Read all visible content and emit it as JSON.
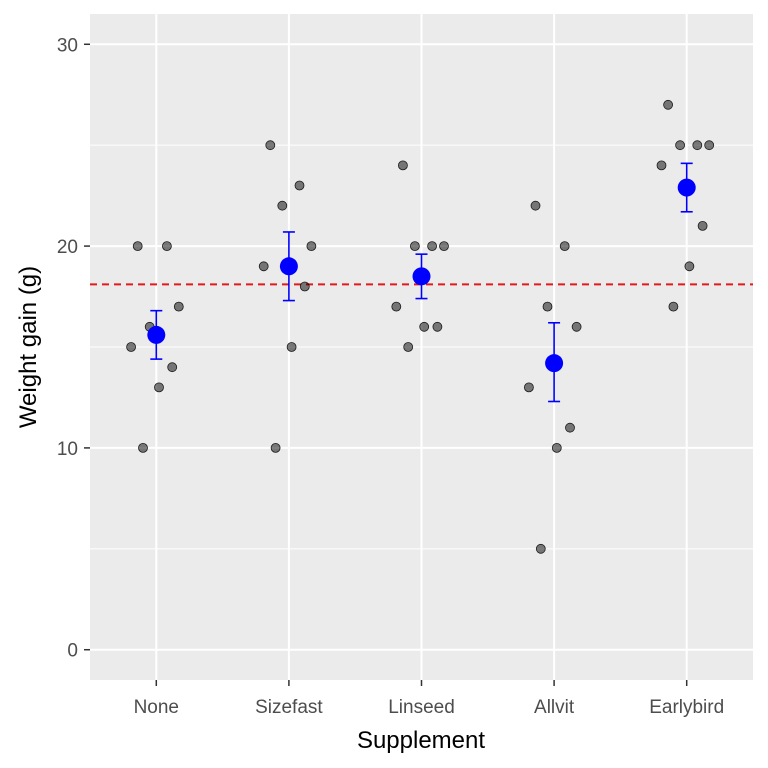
{
  "chart_data": {
    "type": "scatter",
    "title": "",
    "xlabel": "Supplement",
    "ylabel": "Weight gain (g)",
    "categories": [
      "None",
      "Sizefast",
      "Linseed",
      "Allvit",
      "Earlybird"
    ],
    "ylim": [
      -1.5,
      31.5
    ],
    "y_ticks": [
      0,
      10,
      20,
      30
    ],
    "grid": true,
    "legend": "none",
    "reference_line": {
      "value": 18.1,
      "style": "dashed",
      "color": "#e31a1c"
    },
    "points": {
      "None": [
        20,
        20,
        16,
        17,
        15,
        14,
        13,
        10
      ],
      "Sizefast": [
        25,
        23,
        22,
        20,
        19,
        18,
        15,
        10
      ],
      "Linseed": [
        24,
        20,
        20,
        20,
        17,
        16,
        16,
        15
      ],
      "Allvit": [
        22,
        20,
        17,
        16,
        13,
        11,
        10,
        5
      ],
      "Earlybird": [
        27,
        25,
        25,
        25,
        24,
        21,
        19,
        17
      ]
    },
    "means": [
      {
        "category": "None",
        "mean": 15.6,
        "lower": 14.4,
        "upper": 16.8
      },
      {
        "category": "Sizefast",
        "mean": 19.0,
        "lower": 17.3,
        "upper": 20.7
      },
      {
        "category": "Linseed",
        "mean": 18.5,
        "lower": 17.4,
        "upper": 19.6
      },
      {
        "category": "Allvit",
        "mean": 14.2,
        "lower": 12.3,
        "upper": 16.2
      },
      {
        "category": "Earlybird",
        "mean": 22.9,
        "lower": 21.7,
        "upper": 24.1
      }
    ],
    "colors": {
      "panel": "#ebebeb",
      "grid": "#ffffff",
      "points": "#000000",
      "mean": "#0000ff",
      "reference": "#e31a1c"
    }
  }
}
